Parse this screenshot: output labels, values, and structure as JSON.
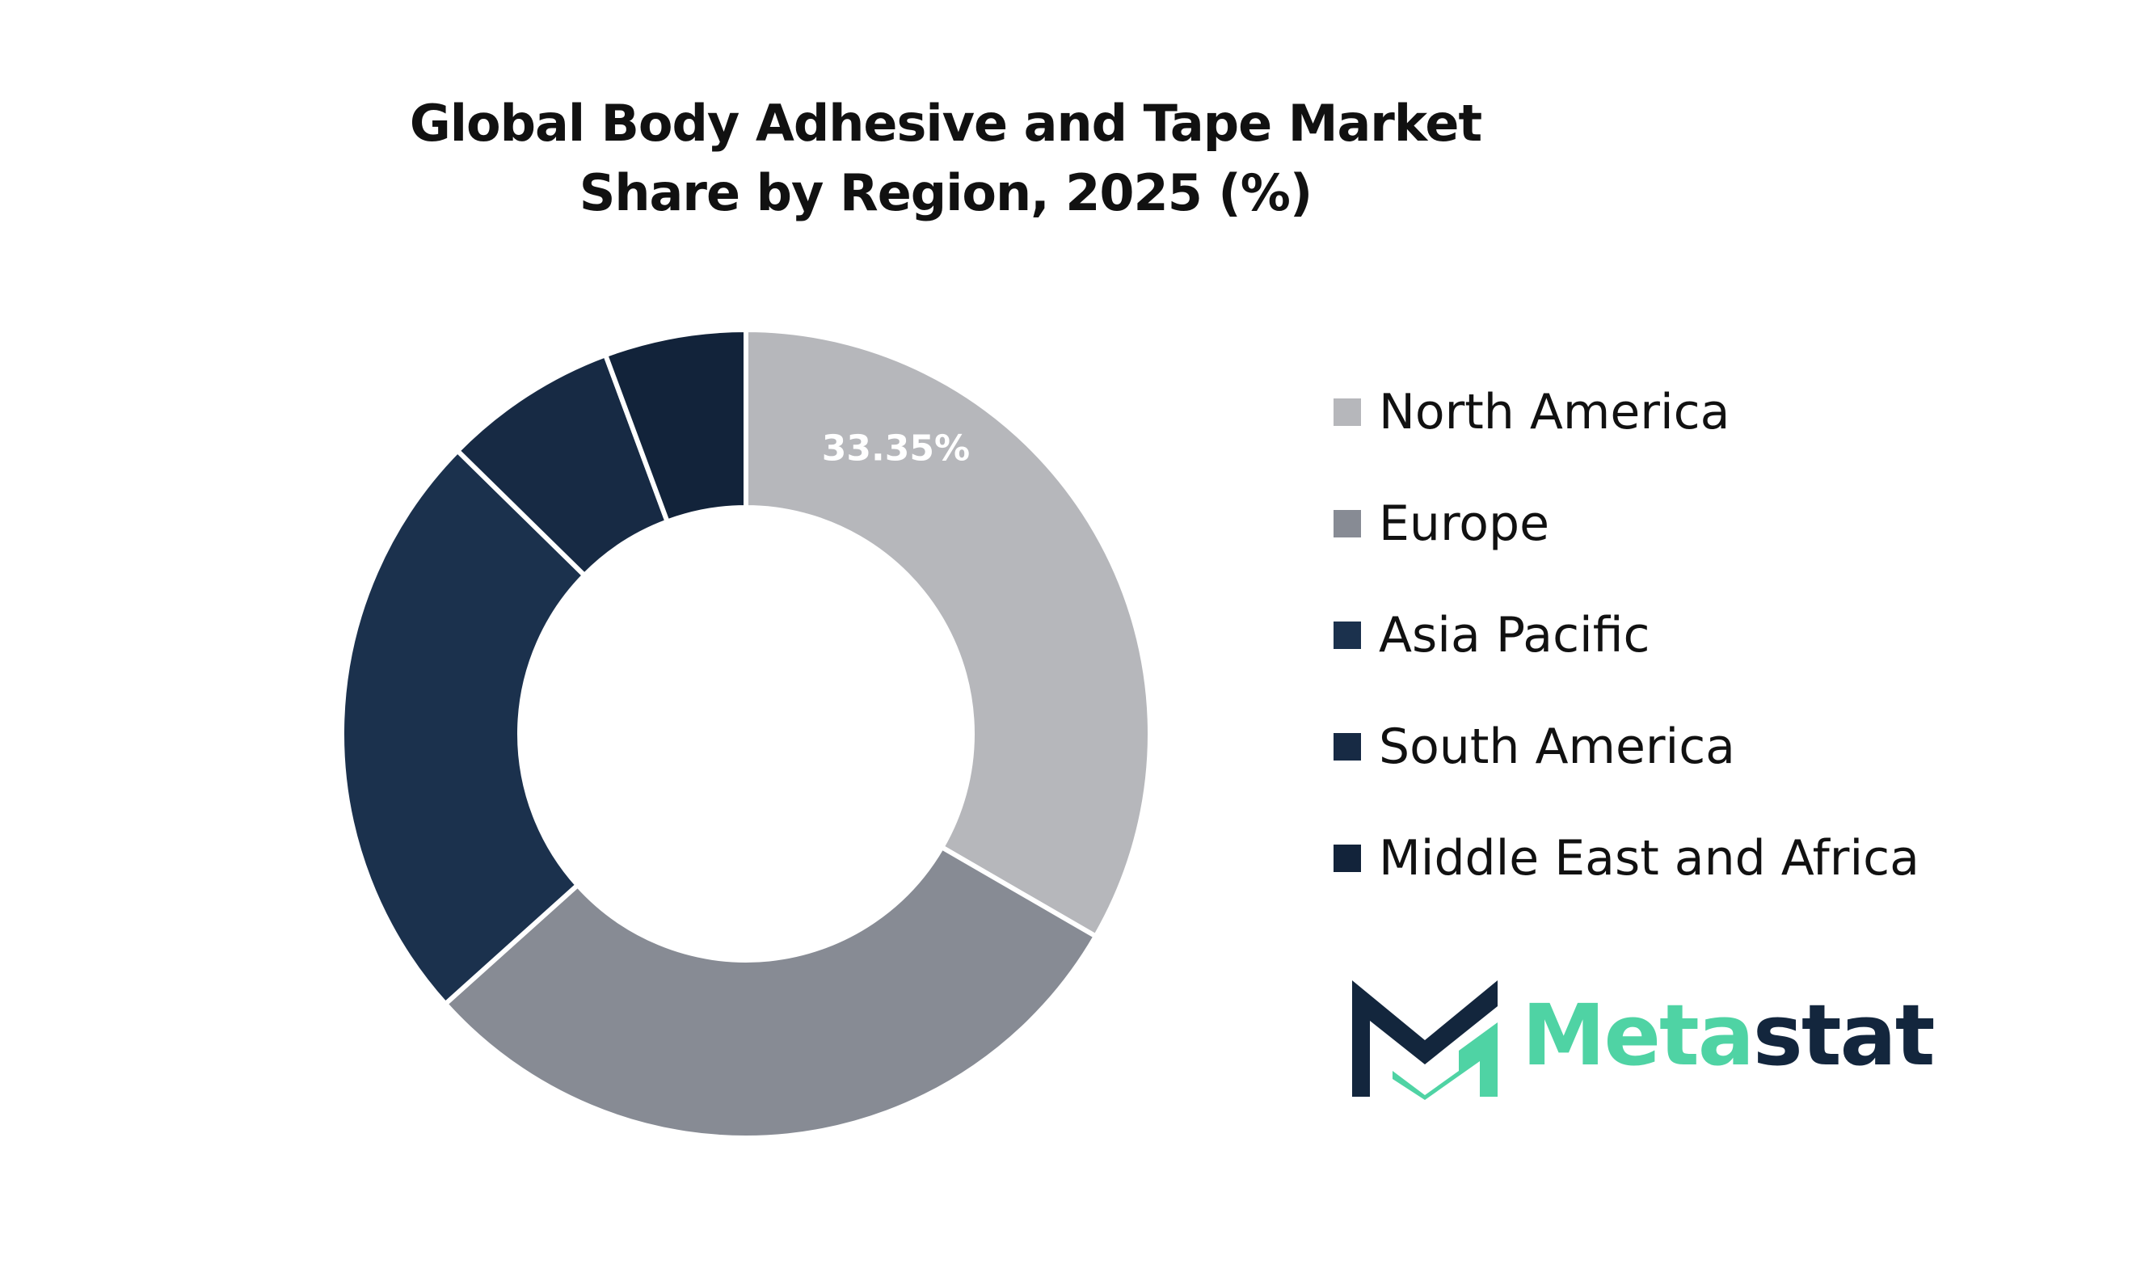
{
  "colors": {
    "north_america": "#b6b7bb",
    "europe": "#878b94",
    "asia_pacific": "#1b314d",
    "south_america": "#172a44",
    "middle_east_africa": "#12233a",
    "logo_dark": "#13263d",
    "logo_green": "#4fd3a4"
  },
  "chart_data": {
    "type": "pie",
    "title": "Global Body Adhesive and Tape Market Share by Region, 2025 (%)",
    "categories": [
      "North America",
      "Europe",
      "Asia Pacific",
      "South America",
      "Middle East and Africa"
    ],
    "values": [
      33.35,
      30.0,
      24.0,
      7.0,
      5.65
    ],
    "data_labels": [
      "33.35%",
      "",
      "",
      "",
      ""
    ],
    "hole": 0.56,
    "legend_position": "right"
  },
  "logo": {
    "part1": "Meta",
    "part2": "stat"
  }
}
